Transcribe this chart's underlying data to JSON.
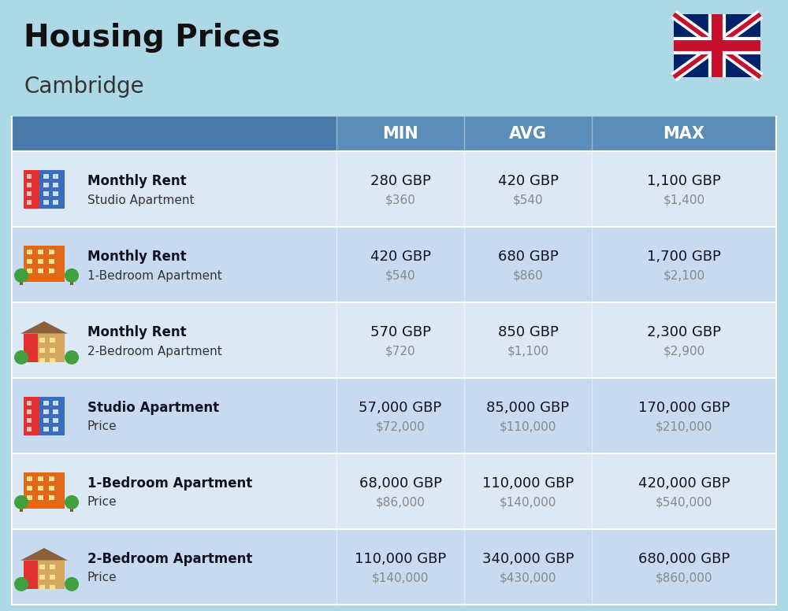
{
  "title": "Housing Prices",
  "subtitle": "Cambridge",
  "background_color": "#add8e6",
  "header_bg_color": "#5b8db8",
  "header_text_color": "#ffffff",
  "row_bg_even": "#dce9f5",
  "row_bg_odd": "#c8daf0",
  "col_headers": [
    "MIN",
    "AVG",
    "MAX"
  ],
  "rows": [
    {
      "label_bold": "Monthly Rent",
      "label_sub": "Studio Apartment",
      "min_gbp": "280 GBP",
      "min_usd": "$360",
      "avg_gbp": "420 GBP",
      "avg_usd": "$540",
      "max_gbp": "1,100 GBP",
      "max_usd": "$1,400",
      "icon_type": "studio_blue"
    },
    {
      "label_bold": "Monthly Rent",
      "label_sub": "1-Bedroom Apartment",
      "min_gbp": "420 GBP",
      "min_usd": "$540",
      "avg_gbp": "680 GBP",
      "avg_usd": "$860",
      "max_gbp": "1,700 GBP",
      "max_usd": "$2,100",
      "icon_type": "one_bed_orange"
    },
    {
      "label_bold": "Monthly Rent",
      "label_sub": "2-Bedroom Apartment",
      "min_gbp": "570 GBP",
      "min_usd": "$720",
      "avg_gbp": "850 GBP",
      "avg_usd": "$1,100",
      "max_gbp": "2,300 GBP",
      "max_usd": "$2,900",
      "icon_type": "two_bed_beige"
    },
    {
      "label_bold": "Studio Apartment",
      "label_sub": "Price",
      "min_gbp": "57,000 GBP",
      "min_usd": "$72,000",
      "avg_gbp": "85,000 GBP",
      "avg_usd": "$110,000",
      "max_gbp": "170,000 GBP",
      "max_usd": "$210,000",
      "icon_type": "studio_blue"
    },
    {
      "label_bold": "1-Bedroom Apartment",
      "label_sub": "Price",
      "min_gbp": "68,000 GBP",
      "min_usd": "$86,000",
      "avg_gbp": "110,000 GBP",
      "avg_usd": "$140,000",
      "max_gbp": "420,000 GBP",
      "max_usd": "$540,000",
      "icon_type": "one_bed_orange"
    },
    {
      "label_bold": "2-Bedroom Apartment",
      "label_sub": "Price",
      "min_gbp": "110,000 GBP",
      "min_usd": "$140,000",
      "avg_gbp": "340,000 GBP",
      "avg_usd": "$430,000",
      "max_gbp": "680,000 GBP",
      "max_usd": "$860,000",
      "icon_type": "two_bed_beige"
    }
  ]
}
